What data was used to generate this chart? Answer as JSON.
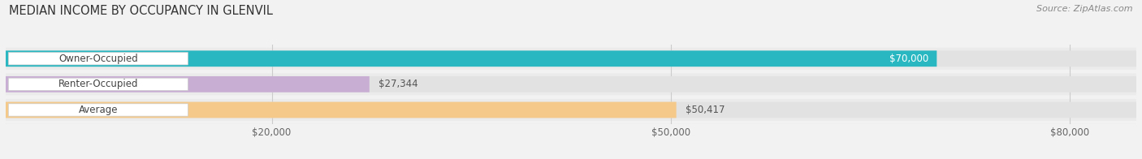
{
  "title": "MEDIAN INCOME BY OCCUPANCY IN GLENVIL",
  "source": "Source: ZipAtlas.com",
  "categories": [
    "Owner-Occupied",
    "Renter-Occupied",
    "Average"
  ],
  "values": [
    70000,
    27344,
    50417
  ],
  "labels": [
    "$70,000",
    "$27,344",
    "$50,417"
  ],
  "label_inside": [
    true,
    false,
    false
  ],
  "bar_colors": [
    "#29b8c2",
    "#c9aed4",
    "#f5c98a"
  ],
  "xlim_max": 85000,
  "xticks": [
    20000,
    50000,
    80000
  ],
  "xticklabels": [
    "$20,000",
    "$50,000",
    "$80,000"
  ],
  "bg_color": "#f2f2f2",
  "bar_bg_color": "#e2e2e2",
  "bar_row_bg": "#ebebeb",
  "title_fontsize": 10.5,
  "source_fontsize": 8,
  "label_fontsize": 8.5,
  "cat_fontsize": 8.5,
  "tick_fontsize": 8.5
}
